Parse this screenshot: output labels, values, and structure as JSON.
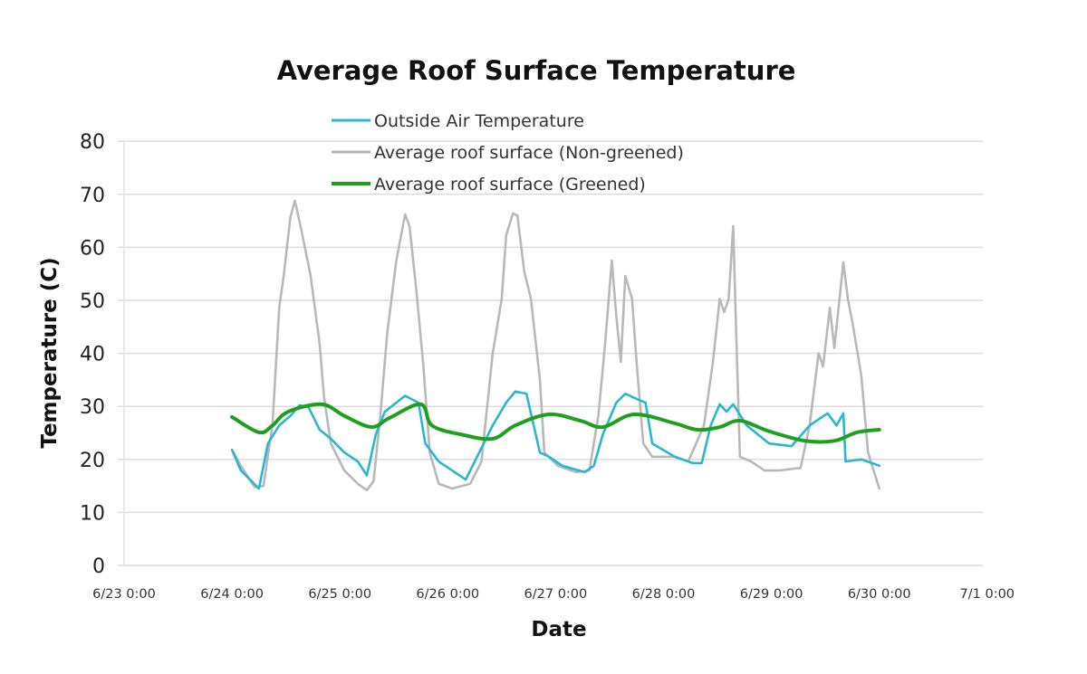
{
  "chart_data": {
    "type": "line",
    "title": "Average Roof Surface Temperature",
    "xlabel": "Date",
    "ylabel": "Temperature (C)",
    "ylim": [
      0,
      80
    ],
    "yticks": [
      "0",
      "10",
      "20",
      "30",
      "40",
      "50",
      "60",
      "70",
      "80"
    ],
    "xlim": [
      "6/23 0:00",
      "7/1 0:00"
    ],
    "xticks": [
      "6/23 0:00",
      "6/24 0:00",
      "6/25 0:00",
      "6/26 0:00",
      "6/27 0:00",
      "6/28 0:00",
      "6/29 0:00",
      "6/30 0:00",
      "7/1 0:00"
    ],
    "grid": "horizontal",
    "legend": "top",
    "series": [
      {
        "name": "Outside Air Temperature",
        "color": "#29b6cf",
        "points": [
          [
            "6/24 0:00",
            21.8
          ],
          [
            "6/24 2:00",
            17.9
          ],
          [
            "6/24 6:00",
            14.5
          ],
          [
            "6/24 8:00",
            23.0
          ],
          [
            "6/24 10:30",
            26.4
          ],
          [
            "6/24 13:00",
            28.2
          ],
          [
            "6/24 15:00",
            30.2
          ],
          [
            "6/24 17:00",
            29.9
          ],
          [
            "6/24 19:30",
            25.6
          ],
          [
            "6/24 22:00",
            23.9
          ],
          [
            "6/25 1:00",
            21.3
          ],
          [
            "6/25 4:00",
            19.6
          ],
          [
            "6/25 6:00",
            17.0
          ],
          [
            "6/25 8:00",
            24.7
          ],
          [
            "6/25 10:00",
            29.0
          ],
          [
            "6/25 14:30",
            32.0
          ],
          [
            "6/25 17:30",
            30.7
          ],
          [
            "6/25 19:00",
            23.0
          ],
          [
            "6/25 22:00",
            19.6
          ],
          [
            "6/26 1:00",
            17.9
          ],
          [
            "6/26 4:00",
            16.2
          ],
          [
            "6/26 7:00",
            21.3
          ],
          [
            "6/26 10:00",
            26.4
          ],
          [
            "6/26 13:00",
            30.7
          ],
          [
            "6/26 15:00",
            32.8
          ],
          [
            "6/26 17:30",
            32.4
          ],
          [
            "6/26 20:30",
            21.3
          ],
          [
            "6/26 22:30",
            20.5
          ],
          [
            "6/27 1:30",
            18.8
          ],
          [
            "6/27 6:30",
            17.6
          ],
          [
            "6/27 8:30",
            18.8
          ],
          [
            "6/27 10:30",
            24.7
          ],
          [
            "6/27 13:30",
            30.7
          ],
          [
            "6/27 15:30",
            32.4
          ],
          [
            "6/27 17:30",
            31.6
          ],
          [
            "6/27 20:00",
            30.7
          ],
          [
            "6/27 21:30",
            23.0
          ],
          [
            "6/28 2:30",
            20.5
          ],
          [
            "6/28 6:30",
            19.3
          ],
          [
            "6/28 8:30",
            19.3
          ],
          [
            "6/28 10:30",
            26.4
          ],
          [
            "6/28 12:30",
            30.4
          ],
          [
            "6/28 14:00",
            29.0
          ],
          [
            "6/28 15:30",
            30.4
          ],
          [
            "6/28 18:30",
            26.4
          ],
          [
            "6/28 23:30",
            23.0
          ],
          [
            "6/29 4:30",
            22.5
          ],
          [
            "6/29 8:30",
            26.4
          ],
          [
            "6/29 12:30",
            28.7
          ],
          [
            "6/29 14:30",
            26.4
          ],
          [
            "6/29 16:00",
            28.7
          ],
          [
            "6/29 16:30",
            19.6
          ],
          [
            "6/29 20:00",
            20.0
          ],
          [
            "6/30 0:00",
            18.8
          ]
        ]
      },
      {
        "name": "Average roof surface (Non-greened)",
        "color": "#b8b8b8",
        "points": [
          [
            "6/24 0:00",
            21.8
          ],
          [
            "6/24 2:00",
            18.8
          ],
          [
            "6/24 5:00",
            14.8
          ],
          [
            "6/24 7:00",
            15.0
          ],
          [
            "6/24 9:00",
            26.4
          ],
          [
            "6/24 10:30",
            48.6
          ],
          [
            "6/24 11:30",
            54.6
          ],
          [
            "6/24 13:00",
            65.7
          ],
          [
            "6/24 14:00",
            68.8
          ],
          [
            "6/24 15:30",
            63.0
          ],
          [
            "6/24 17:30",
            54.6
          ],
          [
            "6/24 19:30",
            41.8
          ],
          [
            "6/24 20:30",
            31.6
          ],
          [
            "6/24 22:00",
            23.0
          ],
          [
            "6/25 1:00",
            17.9
          ],
          [
            "6/25 4:00",
            15.4
          ],
          [
            "6/25 6:00",
            14.2
          ],
          [
            "6/25 7:30",
            15.9
          ],
          [
            "6/25 9:00",
            28.2
          ],
          [
            "6/25 10:30",
            43.5
          ],
          [
            "6/25 12:30",
            57.2
          ],
          [
            "6/25 14:30",
            66.2
          ],
          [
            "6/25 15:30",
            64.0
          ],
          [
            "6/25 17:00",
            52.0
          ],
          [
            "6/25 18:30",
            38.4
          ],
          [
            "6/25 20:00",
            21.3
          ],
          [
            "6/25 22:00",
            15.4
          ],
          [
            "6/26 1:00",
            14.5
          ],
          [
            "6/26 5:00",
            15.4
          ],
          [
            "6/26 7:30",
            19.6
          ],
          [
            "6/26 10:00",
            40.0
          ],
          [
            "6/26 12:00",
            50.3
          ],
          [
            "6/26 13:00",
            62.3
          ],
          [
            "6/26 14:30",
            66.4
          ],
          [
            "6/26 15:30",
            66.0
          ],
          [
            "6/26 17:00",
            55.5
          ],
          [
            "6/26 18:30",
            50.3
          ],
          [
            "6/26 20:30",
            35.0
          ],
          [
            "6/26 21:30",
            21.3
          ],
          [
            "6/27 0:30",
            18.8
          ],
          [
            "6/27 4:30",
            17.6
          ],
          [
            "6/27 7:30",
            17.9
          ],
          [
            "6/27 9:30",
            28.2
          ],
          [
            "6/27 11:00",
            41.8
          ],
          [
            "6/27 12:30",
            57.5
          ],
          [
            "6/27 13:30",
            47.0
          ],
          [
            "6/27 14:30",
            38.4
          ],
          [
            "6/27 15:30",
            54.6
          ],
          [
            "6/27 17:00",
            50.3
          ],
          [
            "6/27 18:00",
            38.4
          ],
          [
            "6/27 19:30",
            23.0
          ],
          [
            "6/27 21:30",
            20.5
          ],
          [
            "6/28 2:30",
            20.5
          ],
          [
            "6/28 5:30",
            19.6
          ],
          [
            "6/28 9:00",
            26.4
          ],
          [
            "6/28 11:00",
            38.4
          ],
          [
            "6/28 12:30",
            50.3
          ],
          [
            "6/28 13:30",
            47.8
          ],
          [
            "6/28 14:30",
            50.3
          ],
          [
            "6/28 15:30",
            64.0
          ],
          [
            "6/28 16:00",
            48.6
          ],
          [
            "6/28 17:00",
            20.5
          ],
          [
            "6/28 19:30",
            19.6
          ],
          [
            "6/28 22:30",
            17.9
          ],
          [
            "6/29 1:30",
            17.9
          ],
          [
            "6/29 6:30",
            18.4
          ],
          [
            "6/29 8:30",
            26.4
          ],
          [
            "6/29 10:30",
            40.0
          ],
          [
            "6/29 11:30",
            37.5
          ],
          [
            "6/29 13:00",
            48.6
          ],
          [
            "6/29 14:00",
            41.0
          ],
          [
            "6/29 16:00",
            57.2
          ],
          [
            "6/29 17:00",
            50.3
          ],
          [
            "6/29 18:00",
            46.0
          ],
          [
            "6/29 20:00",
            35.8
          ],
          [
            "6/29 21:30",
            21.3
          ],
          [
            "6/30 0:00",
            14.5
          ]
        ]
      },
      {
        "name": "Average roof surface (Greened)",
        "color": "#1ea01e",
        "points": [
          [
            "6/24 0:00",
            28.0
          ],
          [
            "6/24 6:00",
            25.1
          ],
          [
            "6/24 9:00",
            26.4
          ],
          [
            "6/24 12:30",
            29.0
          ],
          [
            "6/24 20:00",
            30.4
          ],
          [
            "6/25 1:00",
            28.2
          ],
          [
            "6/25 7:00",
            26.1
          ],
          [
            "6/25 11:00",
            27.8
          ],
          [
            "6/25 18:00",
            30.4
          ],
          [
            "6/25 20:30",
            26.4
          ],
          [
            "6/26 3:00",
            24.7
          ],
          [
            "6/26 10:00",
            23.9
          ],
          [
            "6/26 15:00",
            26.4
          ],
          [
            "6/26 22:30",
            28.5
          ],
          [
            "6/27 5:30",
            27.3
          ],
          [
            "6/27 10:30",
            26.1
          ],
          [
            "6/27 17:30",
            28.5
          ],
          [
            "6/28 2:30",
            26.8
          ],
          [
            "6/28 7:30",
            25.6
          ],
          [
            "6/28 12:30",
            26.1
          ],
          [
            "6/28 17:00",
            27.3
          ],
          [
            "6/28 23:30",
            25.3
          ],
          [
            "6/29 7:30",
            23.5
          ],
          [
            "6/29 14:00",
            23.5
          ],
          [
            "6/29 19:00",
            25.1
          ],
          [
            "6/30 0:00",
            25.6
          ]
        ]
      }
    ]
  }
}
